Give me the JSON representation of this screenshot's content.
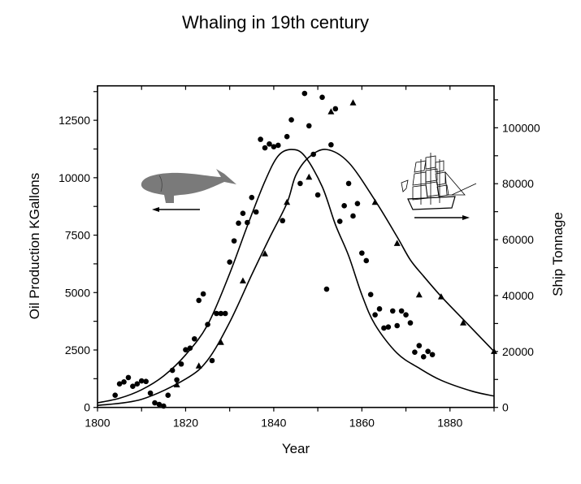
{
  "chart_data": {
    "type": "scatter",
    "title": "Whaling in 19th century",
    "xlabel": "Year",
    "ylabel": "Oil Production KGallons",
    "y2label": "Ship Tonnage",
    "xlim": [
      1800,
      1890
    ],
    "ylim": [
      0,
      14000
    ],
    "y2lim": [
      0,
      115000
    ],
    "xticks": [
      1800,
      1820,
      1840,
      1860,
      1880
    ],
    "xtick_labels": [
      "1800",
      "1820",
      "1840",
      "1860",
      "1880"
    ],
    "yticks": [
      0,
      2500,
      5000,
      7500,
      10000,
      12500
    ],
    "ytick_labels": [
      "0",
      "2500",
      "5000",
      "7500",
      "10000",
      "12500"
    ],
    "y2ticks": [
      0,
      20000,
      40000,
      60000,
      80000,
      100000
    ],
    "y2tick_labels": [
      "0",
      "20000",
      "40000",
      "60000",
      "80000",
      "100000"
    ],
    "grid": false,
    "colors": {
      "markers": "#000000",
      "lines": "#000000",
      "whale": "#7a7a7a"
    },
    "icons": [
      "whale-icon",
      "sailing-ship-icon",
      "arrow-left-icon",
      "arrow-right-icon"
    ],
    "series": [
      {
        "axis": "left",
        "marker": "circle",
        "x": [
          1804,
          1805,
          1806,
          1807,
          1808,
          1809,
          1810,
          1811,
          1812,
          1813,
          1814,
          1815,
          1816,
          1817,
          1818,
          1819,
          1820,
          1821,
          1822,
          1823,
          1824,
          1825,
          1826,
          1827,
          1828,
          1829,
          1830,
          1831,
          1832,
          1833,
          1834,
          1835,
          1836,
          1837,
          1838,
          1839,
          1840,
          1841,
          1842,
          1843,
          1844,
          1846,
          1847,
          1848,
          1849,
          1850,
          1851,
          1852,
          1853,
          1854,
          1855,
          1856,
          1857,
          1858,
          1859,
          1860,
          1861,
          1862,
          1863,
          1864,
          1865,
          1866,
          1867,
          1868,
          1869,
          1870,
          1871,
          1872,
          1873,
          1874,
          1875,
          1876
        ],
        "y": [
          530,
          1025,
          1110,
          1300,
          920,
          1025,
          1155,
          1130,
          625,
          200,
          130,
          60,
          530,
          1615,
          1200,
          1890,
          2510,
          2580,
          2985,
          4660,
          4940,
          3610,
          2040,
          4090,
          4090,
          4090,
          6330,
          7250,
          8020,
          8450,
          8050,
          9140,
          8510,
          11670,
          11300,
          11470,
          11350,
          11410,
          8130,
          11790,
          12520,
          9750,
          13670,
          12260,
          11020,
          9250,
          13500,
          5150,
          11435,
          13000,
          8100,
          8780,
          9750,
          8335,
          8875,
          6720,
          6390,
          4915,
          4030,
          4290,
          3455,
          3500,
          4200,
          3560,
          4200,
          4030,
          3680,
          2405,
          2690,
          2205,
          2440,
          2300
        ]
      },
      {
        "axis": "right",
        "marker": "triangle",
        "x": [
          1818,
          1823,
          1828,
          1833,
          1838,
          1843,
          1848,
          1853,
          1858,
          1863,
          1868,
          1873,
          1878,
          1883,
          1890
        ],
        "y": [
          8040,
          14800,
          23200,
          45200,
          54900,
          73300,
          82300,
          105700,
          108900,
          73300,
          58600,
          40200,
          39500,
          30200,
          20000
        ]
      },
      {
        "axis": "left",
        "marker": "line",
        "x": [
          1800,
          1805,
          1810,
          1815,
          1820,
          1825,
          1830,
          1834,
          1838,
          1841,
          1844,
          1847,
          1851,
          1854,
          1857,
          1860,
          1863,
          1868,
          1873,
          1878,
          1885,
          1890
        ],
        "y": [
          200,
          400,
          770,
          1370,
          2290,
          3600,
          5830,
          7900,
          9845,
          10950,
          11230,
          10950,
          9610,
          7955,
          6600,
          4900,
          3600,
          2360,
          1710,
          1180,
          707,
          495
        ]
      },
      {
        "axis": "right",
        "marker": "line",
        "x": [
          1800,
          1810,
          1820,
          1825,
          1830,
          1835,
          1839,
          1843,
          1845,
          1848,
          1852,
          1857,
          1863,
          1868,
          1871,
          1874,
          1878,
          1883,
          1890
        ],
        "y": [
          700,
          2900,
          10160,
          16950,
          30480,
          47430,
          60500,
          73070,
          83000,
          89500,
          92230,
          87580,
          74000,
          61000,
          52750,
          46940,
          39680,
          31470,
          20000
        ]
      }
    ]
  }
}
